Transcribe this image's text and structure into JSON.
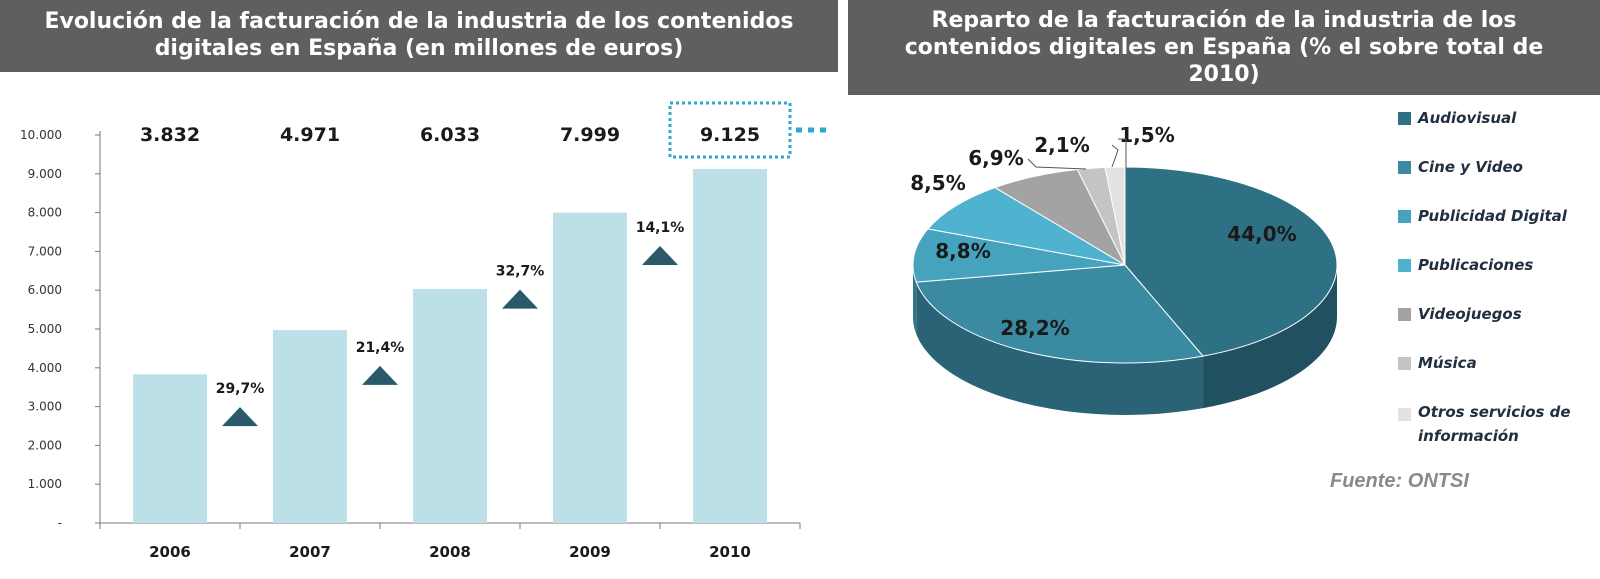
{
  "bar_chart": {
    "title_line1": "Evolución de la facturación de la industria de los contenidos",
    "title_line2": "digitales en España (en millones de euros)"
  },
  "pie_chart": {
    "title_line1": "Reparto de la facturación de la industria de los",
    "title_line2": "contenidos digitales en España (% el sobre total de",
    "title_line3": "2010)"
  },
  "source": "Fuente: ONTSI",
  "chart_data": [
    {
      "type": "bar",
      "title": "Evolución de la facturación de la industria de los contenidos digitales en España (en millones de euros)",
      "categories": [
        "2006",
        "2007",
        "2008",
        "2009",
        "2010"
      ],
      "values": [
        3832,
        4971,
        6033,
        7999,
        9125
      ],
      "value_labels": [
        "3.832",
        "4.971",
        "6.033",
        "7.999",
        "9.125"
      ],
      "growth_labels": [
        "29,7%",
        "21,4%",
        "32,7%",
        "14,1%"
      ],
      "ylim": [
        0,
        10000
      ],
      "yticks": [
        "-",
        "1.000",
        "2.000",
        "3.000",
        "4.000",
        "5.000",
        "6.000",
        "7.000",
        "8.000",
        "9.000",
        "10.000"
      ],
      "xlabel": "",
      "ylabel": "",
      "bar_color": "#bde0e8",
      "marker_color": "#2a5a6a",
      "highlight_color": "#2aa8d0"
    },
    {
      "type": "pie",
      "title": "Reparto de la facturación de la industria de los contenidos digitales en España (% el sobre total de 2010)",
      "labels": [
        "Audiovisual",
        "Cine y Video",
        "Publicidad Digital",
        "Publicaciones",
        "Videojuegos",
        "Música",
        "Otros servicios de información"
      ],
      "values": [
        44.0,
        28.2,
        8.8,
        8.5,
        6.9,
        2.1,
        1.5
      ],
      "value_labels": [
        "44,0%",
        "28,2%",
        "8,8%",
        "8,5%",
        "6,9%",
        "2,1%",
        "1,5%"
      ],
      "colors": [
        "#2e7185",
        "#3a8aa2",
        "#45a3be",
        "#4fb3cf",
        "#a3a3a3",
        "#c4c4c4",
        "#e2e2e2"
      ],
      "legend_position": "right"
    }
  ]
}
